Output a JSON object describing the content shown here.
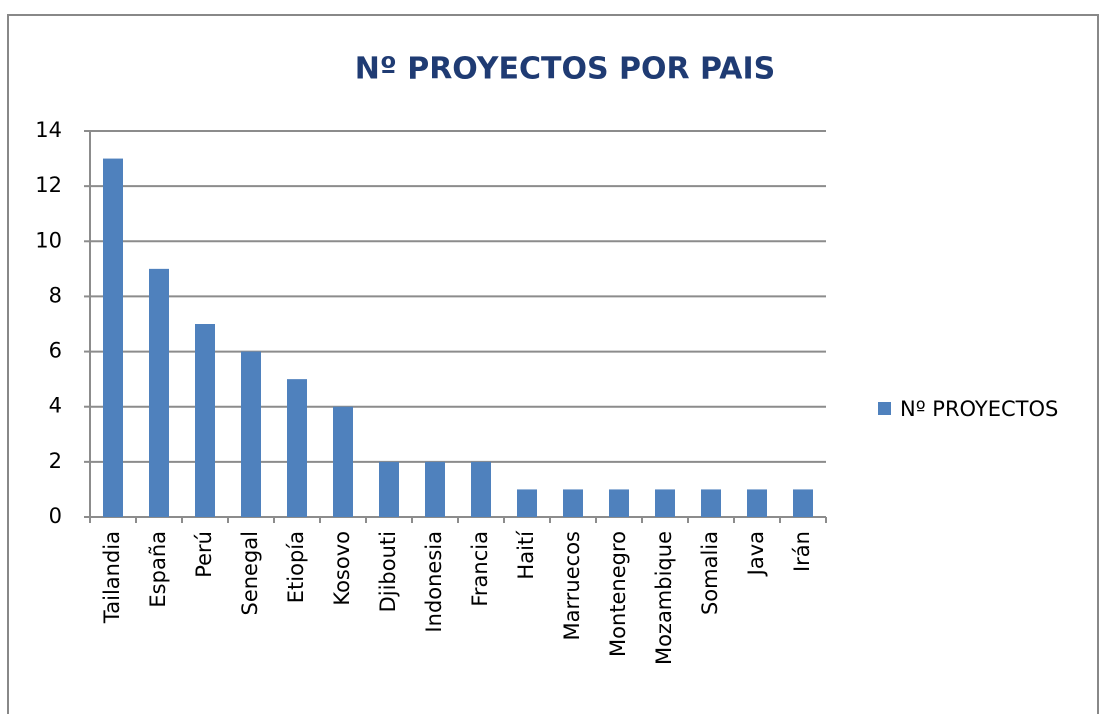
{
  "chart_data": {
    "type": "bar",
    "title": "Nº PROYECTOS POR PAIS",
    "categories": [
      "Tailandia",
      "España",
      "Perú",
      "Senegal",
      "Etiopía",
      "Kosovo",
      "Djibouti",
      "Indonesia",
      "Francia",
      "Haití",
      "Marruecos",
      "Montenegro",
      "Mozambique",
      "Somalia",
      "Java",
      "Irán"
    ],
    "series": [
      {
        "name": "Nº PROYECTOS",
        "color": "#4f81bd",
        "values": [
          13,
          9,
          7,
          6,
          5,
          4,
          2,
          2,
          2,
          1,
          1,
          1,
          1,
          1,
          1,
          1
        ]
      }
    ],
    "ylim": [
      0,
      14
    ],
    "yticks": [
      0,
      2,
      4,
      6,
      8,
      10,
      12,
      14
    ],
    "grid": true,
    "legend": "right"
  }
}
